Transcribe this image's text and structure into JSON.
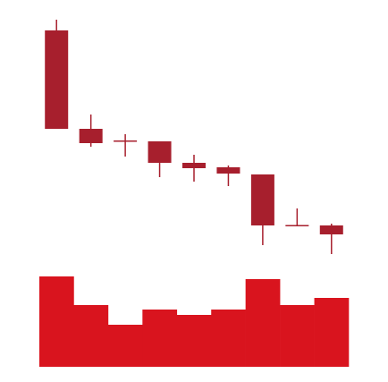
{
  "chart_data": {
    "type": "candlestick",
    "open": [
      266,
      156,
      143,
      142,
      118,
      113,
      105,
      48.5,
      48
    ],
    "high": [
      278,
      172,
      150,
      142,
      127,
      115,
      105,
      67,
      50
    ],
    "low": [
      156,
      136,
      125,
      102,
      97,
      92,
      26,
      48,
      16
    ],
    "close": [
      156,
      140,
      142,
      118,
      112,
      106,
      48,
      48,
      38
    ],
    "color": "#a71f2d",
    "ylim": [
      0,
      300
    ],
    "volume": {
      "values": [
        101,
        69,
        47,
        64,
        58,
        64,
        98,
        69,
        77
      ],
      "color": "#d9141e",
      "ylim": [
        0,
        110
      ]
    }
  }
}
